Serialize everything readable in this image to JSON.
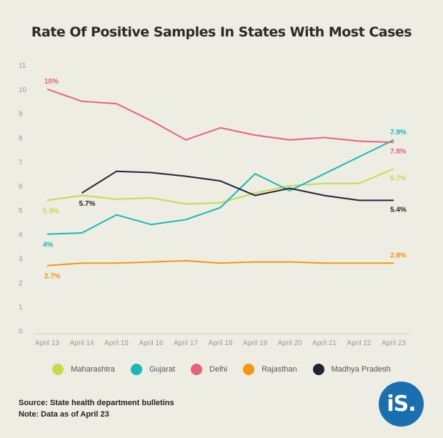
{
  "chart_data": {
    "type": "line",
    "title": "Rate Of Positive Samples In States With Most Cases",
    "xlabel": "",
    "ylabel": "",
    "categories": [
      "April 13",
      "April 14",
      "April 15",
      "April 16",
      "April 17",
      "April 18",
      "April 19",
      "April 20",
      "April 21",
      "April 22",
      "April 23"
    ],
    "ylim": [
      0,
      11
    ],
    "yticks": [
      "0",
      "1",
      "2",
      "3",
      "4",
      "5",
      "6",
      "7",
      "8",
      "9",
      "10",
      "11"
    ],
    "grid": false,
    "legend_position": "bottom",
    "series": [
      {
        "name": "Maharashtra",
        "color": "#c3dc4a",
        "values": [
          5.4,
          5.6,
          5.45,
          5.5,
          5.25,
          5.3,
          5.7,
          6.0,
          6.1,
          6.1,
          6.7
        ],
        "start_label": "5.4%",
        "end_label": "6.7%"
      },
      {
        "name": "Gujarat",
        "color": "#1ab8b4",
        "values": [
          4.0,
          4.05,
          4.8,
          4.4,
          4.6,
          5.1,
          6.5,
          5.8,
          6.5,
          7.2,
          7.9
        ],
        "start_label": "4%",
        "end_label": "7.9%"
      },
      {
        "name": "Delhi",
        "color": "#e8637a",
        "values": [
          10.0,
          9.5,
          9.4,
          8.7,
          7.9,
          8.4,
          8.1,
          7.9,
          8.0,
          7.85,
          7.8
        ],
        "start_label": "10%",
        "end_label": "7.8%"
      },
      {
        "name": "Rajasthan",
        "color": "#f5960f",
        "values": [
          2.7,
          2.8,
          2.8,
          2.85,
          2.9,
          2.8,
          2.85,
          2.85,
          2.8,
          2.8,
          2.8
        ],
        "start_label": "2.7%",
        "end_label": "2.8%"
      },
      {
        "name": "Madhya Pradesh",
        "color": "#22223a",
        "values": [
          null,
          5.7,
          6.6,
          6.55,
          6.4,
          6.2,
          5.6,
          5.9,
          5.6,
          5.4,
          5.4
        ],
        "start_label": "5.7%",
        "end_label": "5.4%"
      }
    ]
  },
  "footer": {
    "source": "Source: State health department bulletins",
    "note": "Note: Data as of April 23"
  },
  "logo": {
    "text": "iS."
  }
}
